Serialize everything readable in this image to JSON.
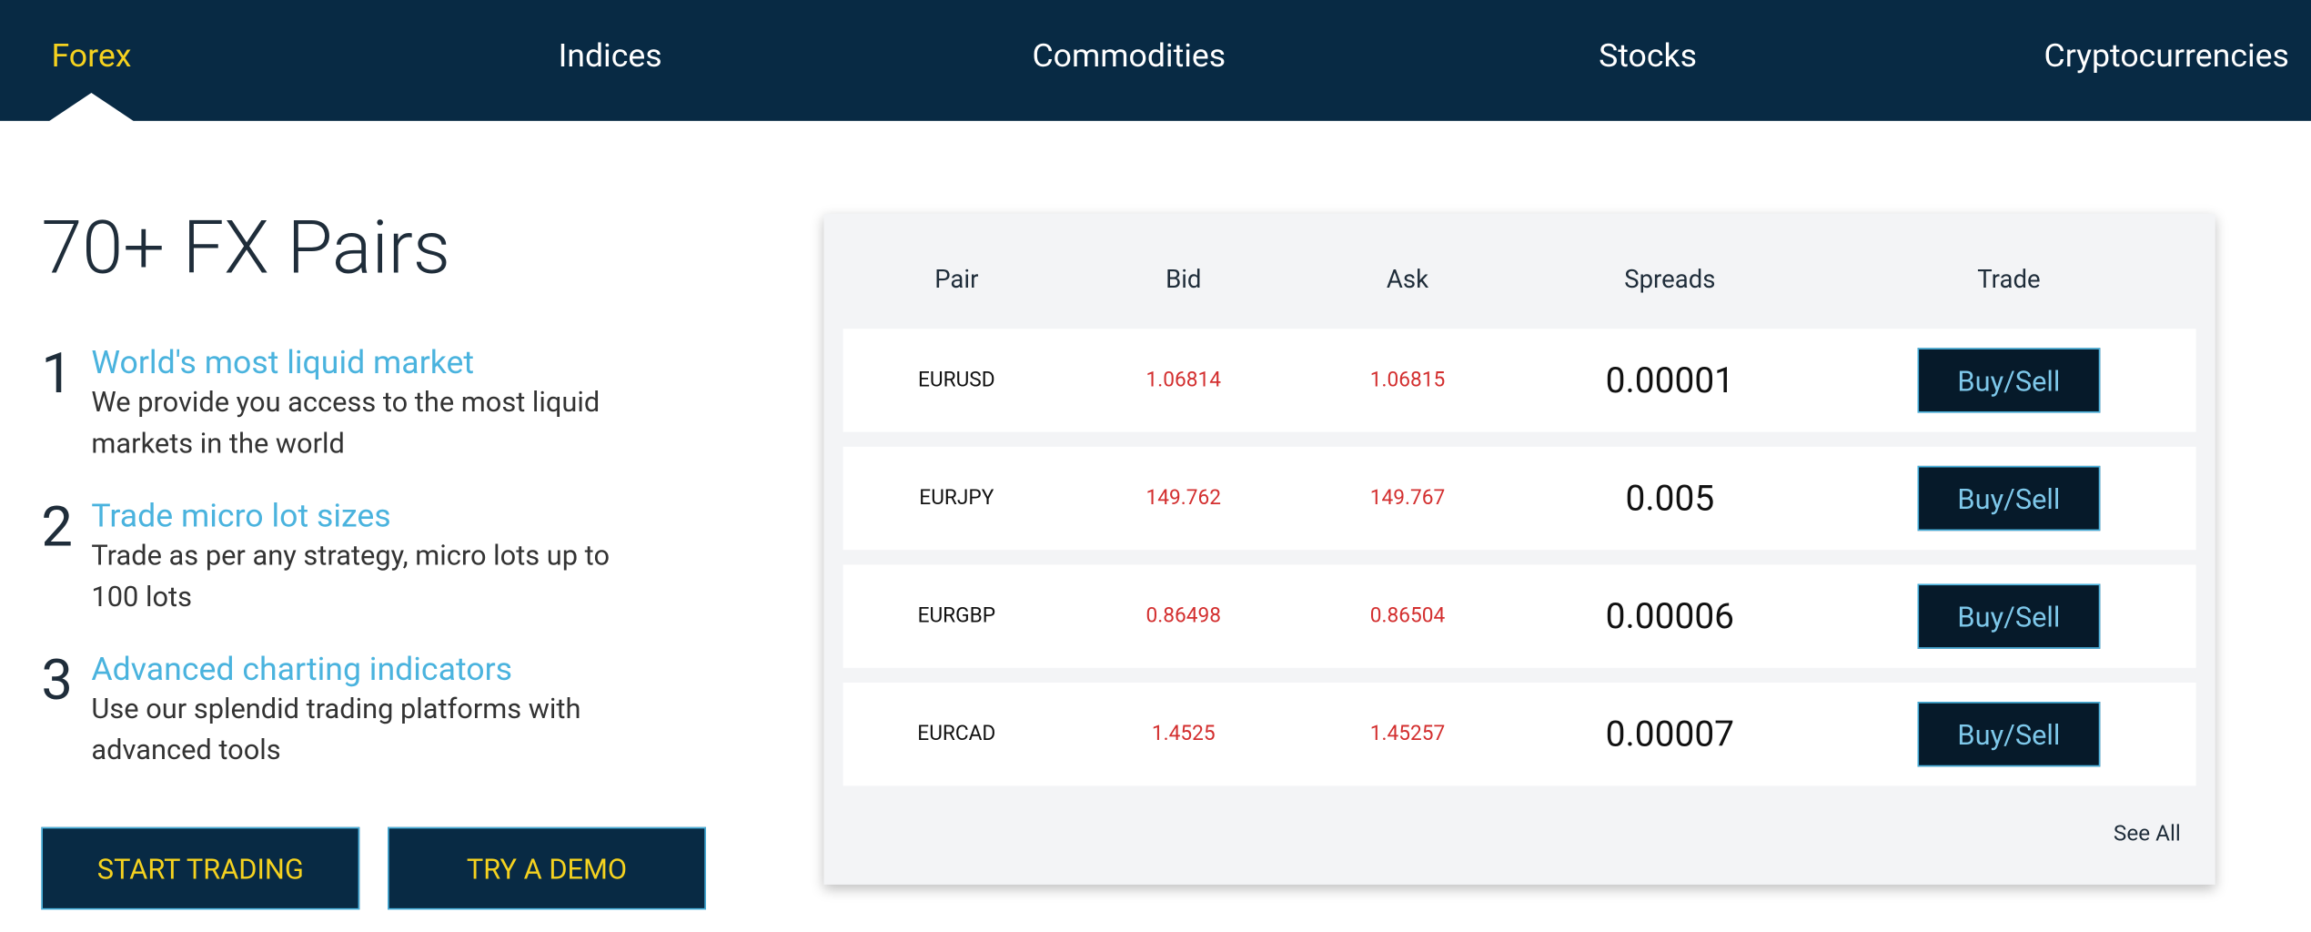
{
  "nav": {
    "tabs": [
      "Forex",
      "Indices",
      "Commodities",
      "Stocks",
      "Cryptocurrencies"
    ]
  },
  "hero": {
    "title": "70+ FX Pairs",
    "features": [
      {
        "number": "1",
        "heading": "World's most liquid market",
        "description": "We provide you access to the most liquid markets in the world"
      },
      {
        "number": "2",
        "heading": "Trade micro lot sizes",
        "description": "Trade as per any strategy, micro lots up to 100 lots"
      },
      {
        "number": "3",
        "heading": "Advanced charting indicators",
        "description": "Use our splendid trading platforms with advanced tools"
      }
    ],
    "buttons": [
      "START TRADING",
      "TRY A DEMO"
    ]
  },
  "table": {
    "headers": [
      "Pair",
      "Bid",
      "Ask",
      "Spreads",
      "Trade"
    ],
    "rows": [
      [
        "EURUSD",
        "1.06814",
        "1.06815",
        "0.00001",
        "Buy/Sell"
      ],
      [
        "EURJPY",
        "149.762",
        "149.767",
        "0.005",
        "Buy/Sell"
      ],
      [
        "EURGBP",
        "0.86498",
        "0.86504",
        "0.00006",
        "Buy/Sell"
      ],
      [
        "EURCAD",
        "1.4525",
        "1.45257",
        "0.00007",
        "Buy/Sell"
      ]
    ],
    "footer_link": "See All"
  }
}
